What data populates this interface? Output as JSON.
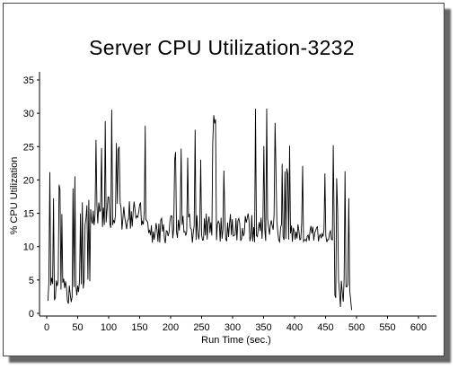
{
  "chart_data": {
    "type": "line",
    "title": "Server CPU Utilization-3232",
    "xlabel": "Run Time (sec.)",
    "ylabel": "% CPU Utilization",
    "xlim": [
      0,
      600
    ],
    "ylim": [
      0,
      35
    ],
    "x_ticks": [
      "0",
      "50",
      "100",
      "150",
      "200",
      "250",
      "300",
      "350",
      "400",
      "450",
      "500",
      "550",
      "600"
    ],
    "y_ticks": [
      "0",
      "5",
      "10",
      "15",
      "20",
      "25",
      "30",
      "35"
    ],
    "grid": false,
    "legend": "none",
    "line_color": "#000000",
    "phases": [
      {
        "x_start": 2,
        "x_end": 62,
        "base_low": 1,
        "base_high": 5.5,
        "spike_low": 13.5,
        "spike_high": 21.5
      },
      {
        "x_start": 62,
        "x_end": 75,
        "base_low": 4,
        "base_high": 18,
        "spike_low": 18,
        "spike_high": 28
      },
      {
        "x_start": 75,
        "x_end": 160,
        "base_low": 12.5,
        "base_high": 17.5,
        "spike_low": 21.5,
        "spike_high": 33.5
      },
      {
        "x_start": 160,
        "x_end": 380,
        "base_low": 10.5,
        "base_high": 15,
        "spike_low": 20,
        "spike_high": 31.5
      },
      {
        "x_start": 380,
        "x_end": 465,
        "base_low": 10.5,
        "base_high": 13.5,
        "spike_low": 20,
        "spike_high": 29
      },
      {
        "x_start": 465,
        "x_end": 492,
        "base_low": 0.5,
        "base_high": 6,
        "spike_low": 13.5,
        "spike_high": 24
      }
    ]
  }
}
